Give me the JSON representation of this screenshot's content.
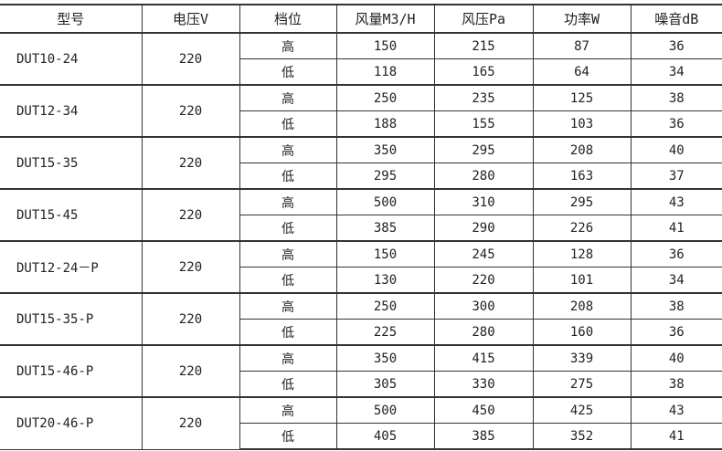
{
  "headers": [
    "型号",
    "电压V",
    "档位",
    "风量M3/H",
    "风压Pa",
    "功率W",
    "噪音dB"
  ],
  "models": [
    {
      "model": "DUT10-24",
      "voltage": "220",
      "rows": [
        {
          "level": "高",
          "airflow": "150",
          "pressure": "215",
          "power": "87",
          "noise": "36"
        },
        {
          "level": "低",
          "airflow": "118",
          "pressure": "165",
          "power": "64",
          "noise": "34"
        }
      ]
    },
    {
      "model": "DUT12-34",
      "voltage": "220",
      "rows": [
        {
          "level": "高",
          "airflow": "250",
          "pressure": "235",
          "power": "125",
          "noise": "38"
        },
        {
          "level": "低",
          "airflow": "188",
          "pressure": "155",
          "power": "103",
          "noise": "36"
        }
      ]
    },
    {
      "model": "DUT15-35",
      "voltage": "220",
      "rows": [
        {
          "level": "高",
          "airflow": "350",
          "pressure": "295",
          "power": "208",
          "noise": "40"
        },
        {
          "level": "低",
          "airflow": "295",
          "pressure": "280",
          "power": "163",
          "noise": "37"
        }
      ]
    },
    {
      "model": "DUT15-45",
      "voltage": "220",
      "rows": [
        {
          "level": "高",
          "airflow": "500",
          "pressure": "310",
          "power": "295",
          "noise": "43"
        },
        {
          "level": "低",
          "airflow": "385",
          "pressure": "290",
          "power": "226",
          "noise": "41"
        }
      ]
    },
    {
      "model": "DUT12-24－P",
      "voltage": "220",
      "rows": [
        {
          "level": "高",
          "airflow": "150",
          "pressure": "245",
          "power": "128",
          "noise": "36"
        },
        {
          "level": "低",
          "airflow": "130",
          "pressure": "220",
          "power": "101",
          "noise": "34"
        }
      ]
    },
    {
      "model": "DUT15-35-P",
      "voltage": "220",
      "rows": [
        {
          "level": "高",
          "airflow": "250",
          "pressure": "300",
          "power": "208",
          "noise": "38"
        },
        {
          "level": "低",
          "airflow": "225",
          "pressure": "280",
          "power": "160",
          "noise": "36"
        }
      ]
    },
    {
      "model": "DUT15-46-P",
      "voltage": "220",
      "rows": [
        {
          "level": "高",
          "airflow": "350",
          "pressure": "415",
          "power": "339",
          "noise": "40"
        },
        {
          "level": "低",
          "airflow": "305",
          "pressure": "330",
          "power": "275",
          "noise": "38"
        }
      ]
    },
    {
      "model": "DUT20-46-P",
      "voltage": "220",
      "rows": [
        {
          "level": "高",
          "airflow": "500",
          "pressure": "450",
          "power": "425",
          "noise": "43"
        },
        {
          "level": "低",
          "airflow": "405",
          "pressure": "385",
          "power": "352",
          "noise": "41"
        }
      ]
    }
  ]
}
